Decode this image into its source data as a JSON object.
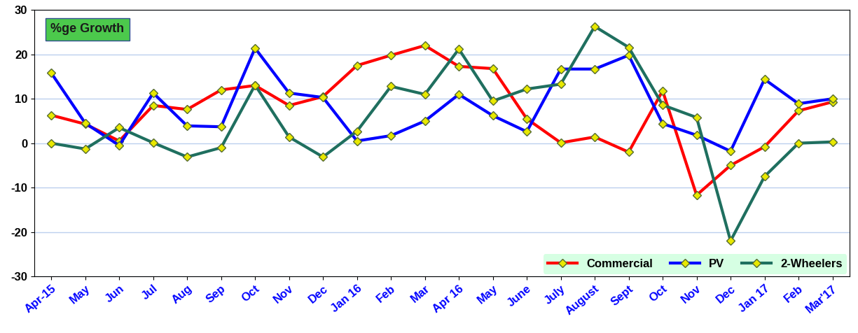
{
  "chart_data": {
    "type": "line",
    "annotations": [
      "%ge Growth"
    ],
    "categories": [
      "Apr-15",
      "May",
      "Jun",
      "Jul",
      "Aug",
      "Sep",
      "Oct",
      "Nov",
      "Dec",
      "Jan 16",
      "Feb",
      "Mar",
      "Apr 16",
      "May",
      "June",
      "July",
      "August",
      "Sept",
      "Oct",
      "Nov",
      "Dec",
      "Jan 17",
      "Feb",
      "Mar'17"
    ],
    "series": [
      {
        "name": "Commercial",
        "color": "#ff0000",
        "marker": "diamond",
        "line_style": "solid",
        "values": [
          6.3,
          4.3,
          0.5,
          8.5,
          7.6,
          12,
          13,
          8.5,
          10.5,
          17.5,
          19.8,
          22,
          17.3,
          16.8,
          5.5,
          0.1,
          1.4,
          -2,
          11.8,
          -11.7,
          -5,
          -0.8,
          7.3,
          9.3
        ]
      },
      {
        "name": "PV",
        "color": "#0000ff",
        "marker": "diamond",
        "line_style": "solid",
        "values": [
          15.8,
          4.5,
          -0.5,
          11.3,
          3.9,
          3.7,
          21.4,
          11.3,
          10.3,
          0.5,
          1.7,
          5,
          11,
          6.2,
          2.6,
          16.7,
          16.7,
          19.8,
          4.4,
          1.8,
          -1.8,
          14.4,
          8.9,
          10
        ]
      },
      {
        "name": "2-Wheelers",
        "color": "#1f6f5f",
        "marker": "diamond",
        "line_style": "solid",
        "values": [
          0,
          -1.3,
          3.5,
          0.1,
          -3.1,
          -1,
          13.1,
          1.4,
          -3.1,
          2.7,
          12.8,
          11,
          21.2,
          9.5,
          12.2,
          13.3,
          26.3,
          21.6,
          8.6,
          5.8,
          -22,
          -7.5,
          0,
          0.3
        ]
      }
    ],
    "ylim": [
      -30,
      30
    ],
    "yticks": [
      -30,
      -20,
      -10,
      0,
      10,
      20,
      30
    ],
    "grid": true,
    "legend": "lower right"
  }
}
